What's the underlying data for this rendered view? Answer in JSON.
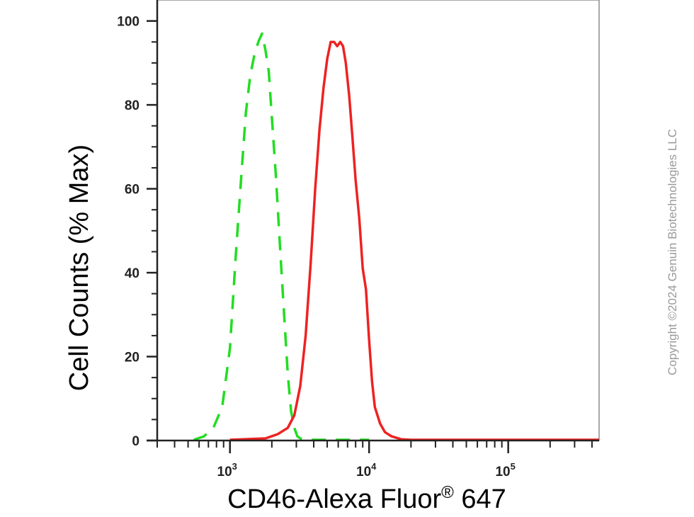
{
  "chart_data": {
    "type": "line",
    "title": "",
    "xlabel": "CD46-Alexa Fluor",
    "xlabel_superscript": "®",
    "xlabel_suffix": " 647",
    "ylabel": "Cell Counts (% Max)",
    "x_scale": "log",
    "xlim": [
      300,
      450000
    ],
    "ylim": [
      0,
      105
    ],
    "y_ticks": [
      0,
      20,
      40,
      60,
      80,
      100
    ],
    "y_tick_labels": [
      "0",
      "20",
      "40",
      "60",
      "80",
      "100"
    ],
    "x_major_ticks": [
      1000,
      10000,
      100000
    ],
    "x_tick_labels": [
      {
        "base": "10",
        "exp": "3"
      },
      {
        "base": "10",
        "exp": "4"
      },
      {
        "base": "10",
        "exp": "5"
      }
    ],
    "grid": false,
    "legend": "none",
    "series": [
      {
        "color": "#22dd22",
        "dash": "dashed",
        "x": [
          550,
          650,
          760,
          880,
          1000,
          1100,
          1200,
          1300,
          1400,
          1500,
          1600,
          1700,
          1800,
          1900,
          2000,
          2150,
          2300,
          2450,
          2600,
          2750,
          2900,
          3050,
          3200,
          3400,
          3700,
          4200,
          6000,
          10000
        ],
        "y": [
          0,
          1,
          3,
          8,
          22,
          44,
          62,
          78,
          87,
          92,
          95,
          97,
          93,
          88,
          77,
          62,
          45,
          30,
          16,
          7,
          3,
          1,
          0.5,
          0,
          0,
          0,
          0,
          0
        ]
      },
      {
        "color": "#ee2222",
        "dash": "solid",
        "x": [
          1000,
          1800,
          2200,
          2600,
          2900,
          3200,
          3500,
          3800,
          4100,
          4400,
          4700,
          5000,
          5300,
          5600,
          5900,
          6200,
          6500,
          6800,
          7200,
          7600,
          8000,
          8500,
          9000,
          9500,
          10000,
          10500,
          11000,
          12000,
          13000,
          14500,
          17000,
          20000,
          50000,
          450000
        ],
        "y": [
          0,
          0.5,
          1.5,
          3,
          6,
          13,
          25,
          42,
          60,
          74,
          84,
          91,
          95,
          95,
          94,
          95,
          94,
          90,
          82,
          72,
          62,
          53,
          41,
          36,
          24,
          14,
          8,
          4,
          2,
          1,
          0.3,
          0,
          0,
          0
        ]
      }
    ]
  },
  "copyright": "Copyright ©2024 Genuin Biotechnologies LLC"
}
